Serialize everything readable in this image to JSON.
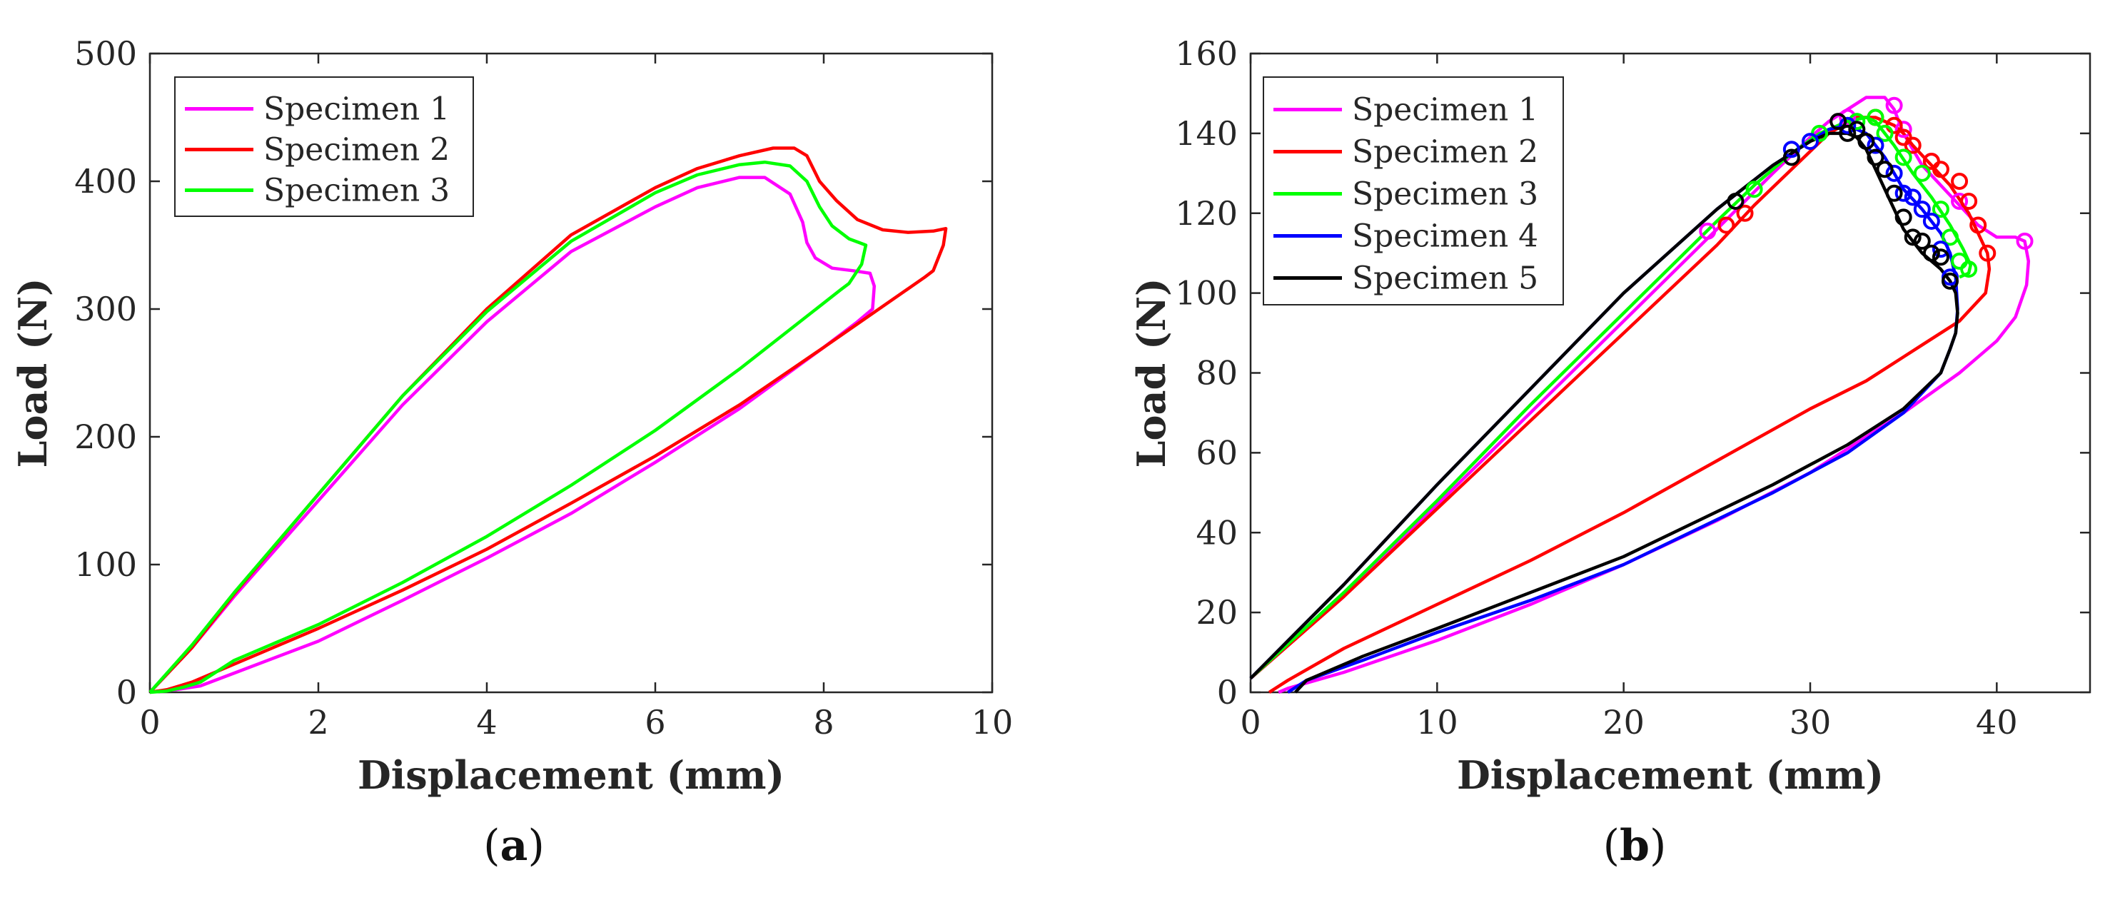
{
  "chart_data": [
    {
      "type": "line",
      "caption_open": "(",
      "caption_letter": "a",
      "caption_close": ")",
      "xlabel": "Displacement (mm)",
      "ylabel": "Load (N)",
      "xlim": [
        0,
        10
      ],
      "ylim": [
        0,
        500
      ],
      "xticks": [
        0,
        2,
        4,
        6,
        8,
        10
      ],
      "yticks": [
        0,
        100,
        200,
        300,
        400,
        500
      ],
      "legend_position": "top-left",
      "series": [
        {
          "name": "Specimen 1",
          "color": "#FF00FF",
          "x": [
            0.0,
            0.5,
            1.0,
            2.0,
            3.0,
            4.0,
            5.0,
            6.0,
            6.5,
            7.0,
            7.3,
            7.6,
            7.75,
            7.8,
            7.9,
            8.1,
            8.35,
            8.55,
            8.6,
            8.58,
            8.4,
            8.0,
            7.0,
            6.0,
            5.0,
            4.0,
            3.0,
            2.0,
            1.0,
            0.6,
            0.3,
            0.1,
            0.0
          ],
          "y": [
            0,
            35,
            75,
            150,
            225,
            290,
            345,
            380,
            395,
            403,
            403,
            390,
            368,
            352,
            340,
            332,
            330,
            328,
            318,
            300,
            290,
            270,
            222,
            180,
            140,
            105,
            72,
            40,
            15,
            5,
            2,
            1,
            0
          ]
        },
        {
          "name": "Specimen 2",
          "color": "#FF0000",
          "x": [
            0.0,
            0.5,
            1.0,
            2.0,
            3.0,
            4.0,
            5.0,
            6.0,
            6.5,
            7.0,
            7.4,
            7.65,
            7.8,
            7.95,
            8.15,
            8.4,
            8.7,
            9.0,
            9.3,
            9.45,
            9.42,
            9.3,
            9.2,
            8.0,
            7.0,
            6.0,
            5.0,
            4.0,
            3.0,
            2.0,
            1.0,
            0.5,
            0.2,
            0.0
          ],
          "y": [
            0,
            35,
            77,
            155,
            232,
            300,
            358,
            395,
            410,
            420,
            426,
            426,
            420,
            400,
            385,
            370,
            362,
            360,
            361,
            363,
            350,
            330,
            325,
            270,
            225,
            185,
            148,
            112,
            80,
            50,
            22,
            8,
            2,
            0
          ]
        },
        {
          "name": "Specimen 3",
          "color": "#00FF00",
          "x": [
            0.0,
            0.5,
            1.0,
            2.0,
            3.0,
            4.0,
            5.0,
            6.0,
            6.5,
            7.0,
            7.3,
            7.6,
            7.8,
            7.95,
            8.1,
            8.3,
            8.42,
            8.5,
            8.45,
            8.3,
            8.2,
            7.0,
            6.0,
            5.0,
            4.0,
            3.0,
            2.0,
            1.0,
            0.6,
            0.4,
            0.2,
            0.0
          ],
          "y": [
            0,
            37,
            78,
            155,
            232,
            298,
            353,
            391,
            405,
            413,
            415,
            412,
            400,
            380,
            365,
            355,
            352,
            350,
            335,
            320,
            315,
            253,
            205,
            162,
            122,
            86,
            53,
            25,
            8,
            4,
            1,
            0
          ]
        }
      ]
    },
    {
      "type": "line",
      "caption_open": "(",
      "caption_letter": "b",
      "caption_close": ")",
      "xlabel": "Displacement (mm)",
      "ylabel": "Load (N)",
      "xlim": [
        0,
        45
      ],
      "ylim": [
        0,
        160
      ],
      "xticks": [
        0,
        10,
        20,
        30,
        40
      ],
      "yticks": [
        0,
        20,
        40,
        60,
        80,
        100,
        120,
        140,
        160
      ],
      "legend_position": "top-left",
      "markers": "open circles near the peak and softening region",
      "series": [
        {
          "name": "Specimen 1",
          "color": "#FF00FF",
          "x": [
            0.0,
            5.0,
            10.0,
            15.0,
            20.0,
            25.0,
            28.0,
            30.0,
            31.0,
            32.0,
            33.0,
            34.0,
            34.5,
            35.0,
            36.0,
            37.0,
            38.0,
            39.0,
            40.0,
            41.0,
            41.5,
            41.7,
            41.6,
            41.0,
            40.0,
            38.0,
            35.0,
            30.0,
            25.0,
            20.0,
            15.0,
            10.0,
            5.0,
            2.0,
            1.5
          ],
          "y": [
            3.5,
            24,
            47,
            70,
            93,
            116,
            130,
            139,
            143,
            146,
            149,
            149,
            146,
            140,
            132,
            127,
            122,
            117,
            114,
            114,
            113,
            108,
            102,
            94,
            88,
            80,
            70,
            55,
            43,
            32,
            22,
            13,
            5,
            1,
            0
          ],
          "marker_x": [
            24.5,
            32.0,
            34.5,
            35.0,
            36.5,
            38.0,
            41.5
          ],
          "marker_y": [
            115.5,
            144,
            147,
            141,
            133,
            123,
            113
          ]
        },
        {
          "name": "Specimen 2",
          "color": "#FF0000",
          "x": [
            0.0,
            5.0,
            10.0,
            15.0,
            20.0,
            25.0,
            27.0,
            29.0,
            31.0,
            32.5,
            33.5,
            34.5,
            35.0,
            35.5,
            36.5,
            37.5,
            38.5,
            39.0,
            39.5,
            39.6,
            39.4,
            39.0,
            38.0,
            36.0,
            33.0,
            30.0,
            25.0,
            20.0,
            15.0,
            10.0,
            5.0,
            2.0,
            1.0
          ],
          "y": [
            3.5,
            24,
            46,
            68,
            90,
            112,
            122,
            131,
            140,
            144,
            144,
            142,
            140,
            137,
            132,
            127,
            120,
            115,
            110,
            106,
            100,
            98,
            93,
            87,
            78,
            71,
            58,
            45,
            33,
            22,
            11,
            3,
            0
          ],
          "marker_x": [
            25.5,
            26.5,
            33.5,
            34.5,
            35.0,
            35.5,
            36.5,
            37.0,
            38.0,
            38.5,
            39.0,
            39.5
          ],
          "marker_y": [
            117,
            120,
            144,
            142,
            139,
            137,
            133,
            131,
            128,
            123,
            117,
            110
          ]
        },
        {
          "name": "Specimen 3",
          "color": "#00FF00",
          "x": [
            0.0,
            5.0,
            10.0,
            15.0,
            20.0,
            25.0,
            27.0,
            29.0,
            30.5,
            32.0,
            33.0,
            33.5,
            34.0,
            34.5,
            35.5,
            36.5,
            37.5,
            38.2,
            38.6,
            38.5,
            38.0
          ],
          "y": [
            3.5,
            25,
            48,
            72,
            95,
            118,
            127,
            135,
            140,
            143,
            144,
            143,
            140,
            137,
            130,
            124,
            117,
            111,
            107,
            105,
            104
          ],
          "marker_x": [
            27.0,
            30.5,
            32.5,
            33.5,
            34.0,
            35.0,
            36.0,
            37.0,
            37.5,
            38.0,
            38.5
          ],
          "marker_y": [
            126,
            140,
            143,
            144,
            140,
            134,
            130,
            121,
            114,
            108,
            106
          ]
        },
        {
          "name": "Specimen 4",
          "color": "#0000FF",
          "x": [
            0.0,
            5.0,
            10.0,
            15.0,
            20.0,
            25.0,
            28.0,
            30.0,
            31.0,
            32.0,
            33.0,
            34.0,
            35.0,
            36.0,
            37.0,
            37.5,
            37.8,
            37.9,
            37.8,
            37.5,
            37.0,
            35.0,
            32.0,
            28.0,
            24.0,
            20.0,
            15.0,
            10.0,
            6.0,
            3.0,
            2.0
          ],
          "y": [
            3.5,
            27,
            52,
            76,
            100,
            121,
            132,
            138,
            141,
            142,
            140,
            134,
            126,
            121,
            115,
            110,
            104,
            96,
            90,
            86,
            80,
            70,
            60,
            50,
            41,
            32,
            23,
            15,
            8,
            3,
            0
          ],
          "marker_x": [
            29.0,
            30.0,
            32.0,
            33.5,
            34.5,
            35.0,
            35.5,
            36.0,
            36.5,
            37.0,
            37.5
          ],
          "marker_y": [
            136,
            138,
            142,
            137,
            130,
            125,
            124,
            121,
            118,
            111,
            104
          ]
        },
        {
          "name": "Specimen 5",
          "color": "#000000",
          "x": [
            0.0,
            5.0,
            10.0,
            15.0,
            20.0,
            25.0,
            28.0,
            30.0,
            31.0,
            32.0,
            32.5,
            33.0,
            33.5,
            34.0,
            34.5,
            35.0,
            35.5,
            36.0,
            37.0,
            37.5,
            37.8,
            37.9,
            37.8,
            37.5,
            37.0,
            35.0,
            32.0,
            28.0,
            24.0,
            20.0,
            15.0,
            10.0,
            6.0,
            3.0,
            2.4
          ],
          "y": [
            3.5,
            27,
            52,
            76,
            100,
            121,
            132,
            138,
            140,
            140,
            139,
            136,
            131,
            126,
            121,
            116,
            113,
            110,
            106,
            103,
            100,
            95,
            90,
            86,
            80,
            71,
            62,
            52,
            43,
            34,
            25,
            16,
            9,
            3,
            0
          ],
          "marker_x": [
            26.0,
            29.0,
            31.5,
            32.0,
            32.5,
            33.0,
            33.5,
            34.0,
            34.5,
            35.0,
            35.5,
            36.0,
            36.5,
            37.0,
            37.5
          ],
          "marker_y": [
            123,
            134,
            143,
            140,
            141,
            138,
            134,
            131,
            125,
            119,
            114,
            113,
            110,
            109,
            103
          ]
        }
      ]
    }
  ]
}
